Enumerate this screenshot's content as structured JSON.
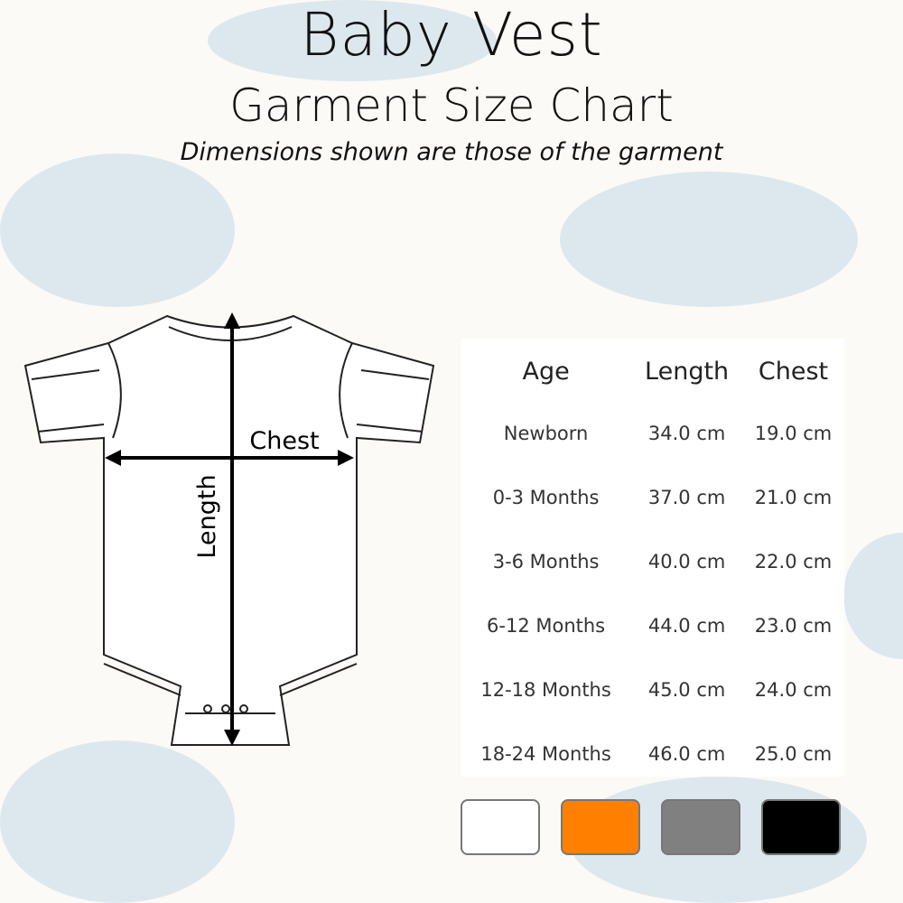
{
  "header": {
    "title": "Baby Vest",
    "subtitle": "Garment Size Chart",
    "note": "Dimensions shown are those of the garment"
  },
  "diagram": {
    "chest_label": "Chest",
    "length_label": "Length"
  },
  "table": {
    "headers": [
      "Age",
      "Length",
      "Chest"
    ],
    "rows": [
      [
        "Newborn",
        "34.0 cm",
        "19.0 cm"
      ],
      [
        "0-3 Months",
        "37.0 cm",
        "21.0 cm"
      ],
      [
        "3-6 Months",
        "40.0 cm",
        "22.0 cm"
      ],
      [
        "6-12 Months",
        "44.0 cm",
        "23.0 cm"
      ],
      [
        "12-18 Months",
        "45.0 cm",
        "24.0 cm"
      ],
      [
        "18-24 Months",
        "46.0 cm",
        "25.0 cm"
      ]
    ]
  },
  "swatches": [
    {
      "name": "white",
      "color": "#ffffff"
    },
    {
      "name": "orange",
      "color": "#ff8000"
    },
    {
      "name": "grey",
      "color": "#808080"
    },
    {
      "name": "black",
      "color": "#000000"
    }
  ]
}
